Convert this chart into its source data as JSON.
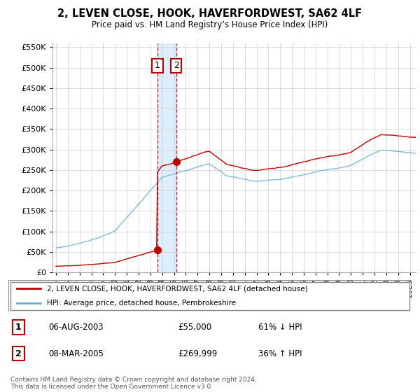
{
  "title": "2, LEVEN CLOSE, HOOK, HAVERFORDWEST, SA62 4LF",
  "subtitle": "Price paid vs. HM Land Registry’s House Price Index (HPI)",
  "legend_line1": "2, LEVEN CLOSE, HOOK, HAVERFORDWEST, SA62 4LF (detached house)",
  "legend_line2": "HPI: Average price, detached house, Pembrokeshire",
  "transaction1_date": "06-AUG-2003",
  "transaction1_price": "£55,000",
  "transaction1_hpi": "61% ↓ HPI",
  "transaction2_date": "08-MAR-2005",
  "transaction2_price": "£269,999",
  "transaction2_hpi": "36% ↑ HPI",
  "footer": "Contains HM Land Registry data © Crown copyright and database right 2024.\nThis data is licensed under the Open Government Licence v3.0.",
  "hpi_color": "#6baed6",
  "price_color": "#c00000",
  "vline_color": "#c00000",
  "vline2_color": "#c00000",
  "shade_color": "#ddeeff",
  "ylim_min": 0,
  "ylim_max": 560000,
  "yticks": [
    0,
    50000,
    100000,
    150000,
    200000,
    250000,
    300000,
    350000,
    400000,
    450000,
    500000,
    550000
  ],
  "transaction1_x": 2003.6,
  "transaction1_y": 55000,
  "transaction2_x": 2005.18,
  "transaction2_y": 269999,
  "xmin": 1994.7,
  "xmax": 2025.5
}
